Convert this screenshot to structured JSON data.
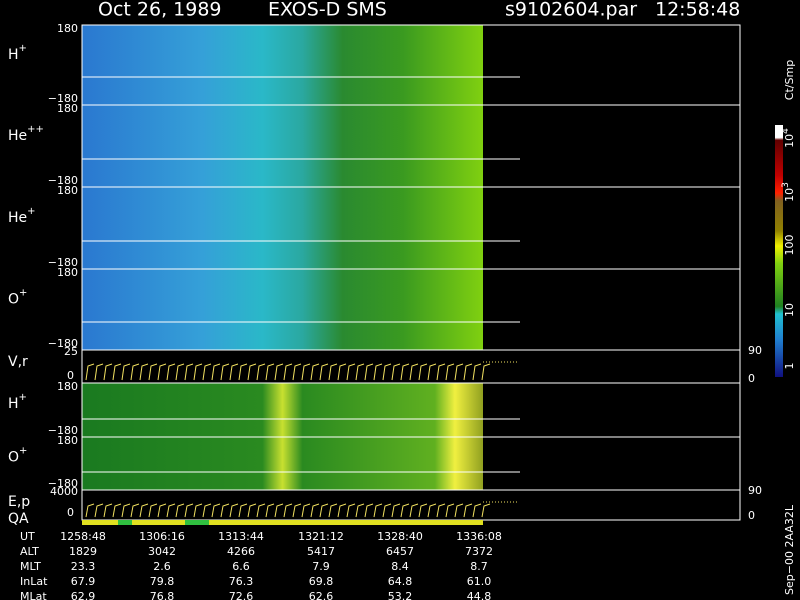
{
  "header": {
    "date": "Oct 26, 1989",
    "instrument": "EXOS-D SMS",
    "file": "s9102604.par",
    "time": "12:58:48"
  },
  "panels": [
    {
      "ion": "H",
      "charge": "+",
      "top": "180",
      "bottom": "−180"
    },
    {
      "ion": "He",
      "charge": "++",
      "top": "180",
      "bottom": "−180"
    },
    {
      "ion": "He",
      "charge": "+",
      "top": "180",
      "bottom": "−180"
    },
    {
      "ion": "O",
      "charge": "+",
      "top": "180",
      "bottom": "−180"
    }
  ],
  "velocity_panel": {
    "label": "V,r",
    "top": "25",
    "zero": "0",
    "right_top": "90",
    "right_zero": "0"
  },
  "lower_panels": [
    {
      "ion": "H",
      "charge": "+",
      "top": "180",
      "bottom": "−180"
    },
    {
      "ion": "O",
      "charge": "+",
      "top": "180",
      "bottom": "−180"
    }
  ],
  "energy_panel": {
    "label": "E,p",
    "top": "4000",
    "zero": "0",
    "right_top": "90",
    "right_zero": "0",
    "qa": "QA"
  },
  "colorbar": {
    "unit": "Ct/Smp",
    "ticks": [
      {
        "base": "10",
        "exp": "4"
      },
      {
        "base": "10",
        "exp": "3"
      },
      {
        "base": "100"
      },
      {
        "base": "10"
      },
      {
        "base": "1"
      }
    ]
  },
  "table": {
    "rows": [
      [
        "UT",
        "1258:48",
        "1306:16",
        "1313:44",
        "1321:12",
        "1328:40",
        "1336:08"
      ],
      [
        "ALT",
        "1829",
        "3042",
        "4266",
        "5417",
        "6457",
        "7372"
      ],
      [
        "MLT",
        "23.3",
        "2.6",
        "6.6",
        "7.9",
        "8.4",
        "8.7"
      ],
      [
        "InLat",
        "67.9",
        "79.8",
        "76.3",
        "69.8",
        "64.8",
        "61.0"
      ],
      [
        "MLat",
        "62.9",
        "76.8",
        "72.6",
        "62.6",
        "53.2",
        "44.8"
      ]
    ]
  },
  "footer": "Sep−00 2AA32L"
}
